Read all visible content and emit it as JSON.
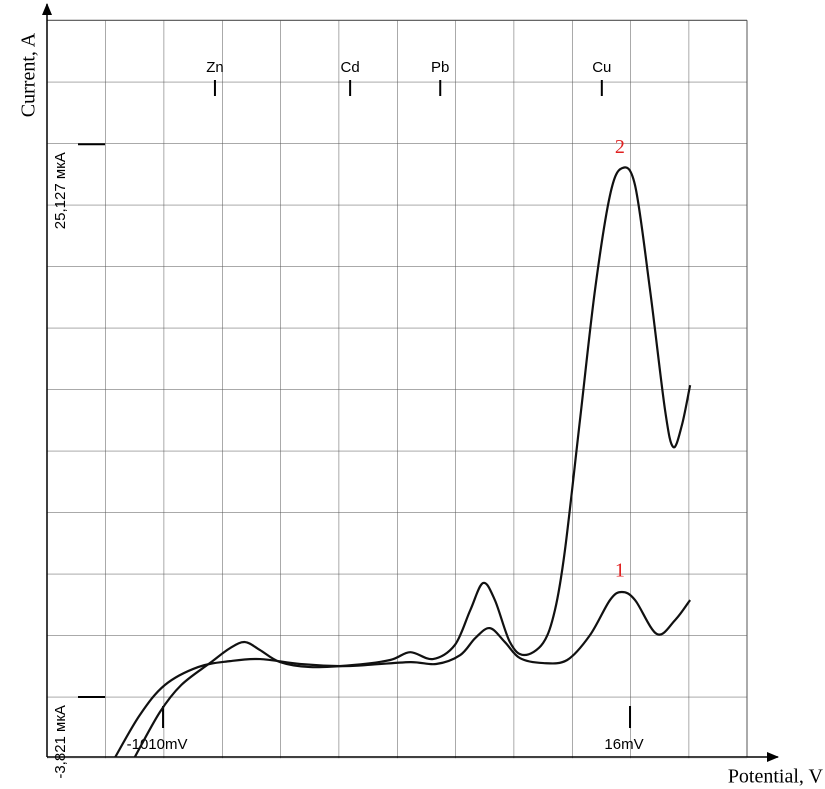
{
  "chart_data": {
    "type": "line",
    "x_label": "Potential, V",
    "y_label": "Current, A",
    "xlim": [
      -1265,
      273
    ],
    "ylim": [
      -6.96,
      31.62
    ],
    "xticks": [
      {
        "value": -1010,
        "label": "-1010mV"
      },
      {
        "value": 16,
        "label": "16mV"
      }
    ],
    "yticks": [
      {
        "value": -3.821,
        "label": "-3,821 мкА"
      },
      {
        "value": 25.127,
        "label": "25,127 мкА"
      }
    ],
    "grid": true,
    "markers": [
      {
        "label": "Zn",
        "x": -896
      },
      {
        "label": "Cd",
        "x": -599
      },
      {
        "label": "Pb",
        "x": -401
      },
      {
        "label": "Cu",
        "x": -46
      }
    ],
    "series": [
      {
        "name": "1",
        "color": "#111111",
        "label_color": "#e02020",
        "x": [
          -1115,
          -1061,
          -1006,
          -933,
          -863,
          -797,
          -709,
          -621,
          -566,
          -467,
          -410,
          -357,
          -324,
          -292,
          -259,
          -226,
          -175,
          -122,
          -72,
          -28,
          -2,
          27,
          75,
          115,
          148
        ],
        "values": [
          -6.96,
          -4.76,
          -3.19,
          -2.25,
          -1.94,
          -1.83,
          -2.09,
          -2.2,
          -2.15,
          -1.99,
          -2.09,
          -1.62,
          -0.73,
          -0.21,
          -0.94,
          -1.78,
          -2.04,
          -1.88,
          -0.58,
          1.26,
          1.68,
          1.26,
          -0.52,
          0.21,
          1.26
        ]
      },
      {
        "name": "2",
        "color": "#111111",
        "label_color": "#e02020",
        "x": [
          -1072,
          -1017,
          -970,
          -907,
          -863,
          -830,
          -797,
          -753,
          -687,
          -595,
          -511,
          -467,
          -417,
          -369,
          -335,
          -307,
          -281,
          -248,
          -217,
          -175,
          -149,
          -127,
          -94,
          -61,
          -28,
          -2,
          27,
          60,
          93,
          111,
          130,
          148
        ],
        "values": [
          -6.96,
          -4.61,
          -3.19,
          -2.04,
          -1.26,
          -0.94,
          -1.36,
          -1.99,
          -2.25,
          -2.15,
          -1.88,
          -1.47,
          -1.83,
          -1.1,
          0.73,
          2.15,
          1.26,
          -0.94,
          -1.62,
          -0.99,
          0.73,
          3.87,
          10.68,
          17.49,
          22.46,
          23.87,
          22.98,
          17.49,
          11.2,
          9.27,
          10.42,
          12.51
        ]
      }
    ]
  }
}
